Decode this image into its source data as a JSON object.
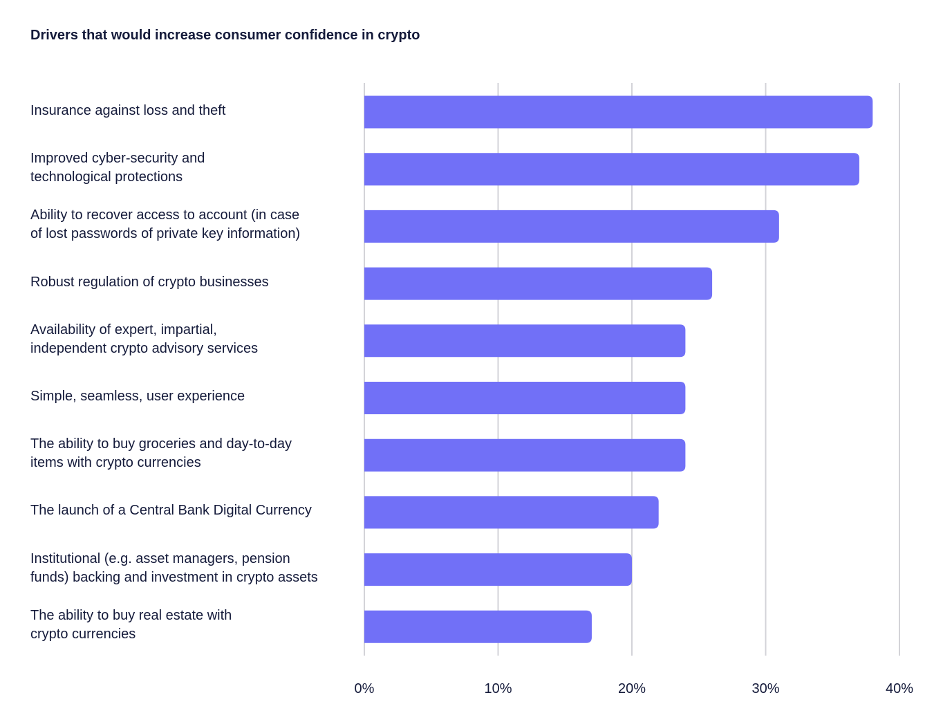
{
  "chart_data": {
    "type": "bar",
    "orientation": "horizontal",
    "title": "Drivers that would increase consumer confidence in crypto",
    "categories": [
      "Insurance against loss and theft",
      "Improved cyber-security and\ntechnological protections",
      "Ability to recover access to account (in case\nof lost passwords of private key information)",
      "Robust regulation of crypto businesses",
      "Availability of expert, impartial,\nindependent crypto advisory services",
      "Simple, seamless, user experience",
      "The ability to buy groceries and day-to-day\nitems with crypto currencies",
      "The launch of a Central Bank Digital Currency",
      "Institutional (e.g. asset managers, pension\nfunds) backing and investment in crypto assets",
      "The ability to buy real estate with\ncrypto currencies"
    ],
    "values": [
      38,
      37,
      31,
      26,
      24,
      24,
      24,
      22,
      20,
      17
    ],
    "xlim": [
      0,
      40
    ],
    "xticks": [
      0,
      10,
      20,
      30,
      40
    ],
    "xtick_labels": [
      "0%",
      "10%",
      "20%",
      "30%",
      "40%"
    ],
    "xlabel": "",
    "ylabel": "",
    "grid": "vertical",
    "legend": "none",
    "bar_color": "#7170f7",
    "grid_color": "#d3d3d8"
  }
}
